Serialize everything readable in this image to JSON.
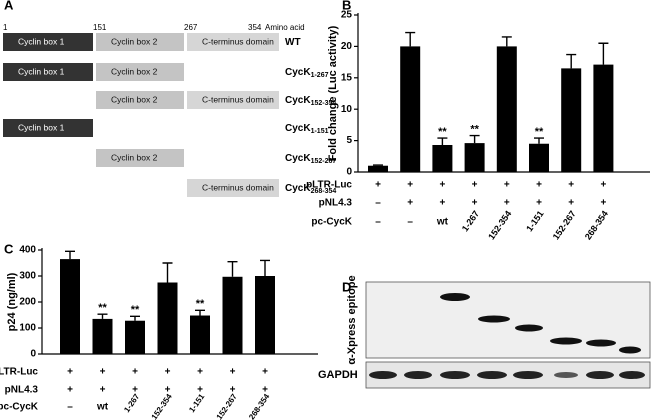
{
  "diagram": {
    "panel": "A",
    "scale": [
      1,
      151,
      267,
      354
    ],
    "scale_unit": "Amino acid",
    "rows": [
      {
        "name": "WT",
        "boxes": [
          {
            "label": "Cyclin box 1",
            "start": 1,
            "end": 151
          },
          {
            "label": "Cyclin box 2",
            "start": 151,
            "end": 267
          },
          {
            "label": "C-terminus domain",
            "start": 267,
            "end": 354
          }
        ]
      },
      {
        "name": "CycK",
        "subscript": "1-267",
        "boxes": [
          {
            "label": "Cyclin box 1",
            "start": 1,
            "end": 151
          },
          {
            "label": "Cyclin box 2",
            "start": 151,
            "end": 267
          }
        ]
      },
      {
        "name": "CycK",
        "subscript": "152-354",
        "boxes": [
          {
            "label": "Cyclin box 2",
            "start": 151,
            "end": 267
          },
          {
            "label": "C-terminus domain",
            "start": 267,
            "end": 354
          }
        ]
      },
      {
        "name": "CycK",
        "subscript": "1-151",
        "boxes": [
          {
            "label": "Cyclin box 1",
            "start": 1,
            "end": 151
          }
        ]
      },
      {
        "name": "CycK",
        "subscript": "152-267",
        "boxes": [
          {
            "label": "Cyclin box 2",
            "start": 151,
            "end": 267
          }
        ]
      },
      {
        "name": "CycK",
        "subscript": "268-354",
        "boxes": [
          {
            "label": "C-terminus domain",
            "start": 267,
            "end": 354
          }
        ]
      }
    ]
  },
  "chart_data": [
    {
      "type": "bar",
      "panel": "B",
      "ylabel": "Fold change (Luc activity)",
      "color": "#000000",
      "values": [
        1,
        20,
        4.3,
        4.6,
        20,
        4.5,
        16.5,
        17.1
      ],
      "errors": [
        0.1,
        2.2,
        1.1,
        1.2,
        1.5,
        0.9,
        2.2,
        3.4
      ],
      "significance": [
        null,
        null,
        "**",
        "**",
        null,
        "**",
        null,
        null
      ],
      "ylim": [
        0,
        25
      ],
      "yticks": [
        0,
        5,
        10,
        15,
        20,
        25
      ],
      "conditions": [
        {
          "name": "pLTR-Luc",
          "entries": [
            "+",
            "+",
            "+",
            "+",
            "+",
            "+",
            "+",
            "+"
          ]
        },
        {
          "name": "pNL4.3",
          "entries": [
            "–",
            "+",
            "+",
            "+",
            "+",
            "+",
            "+",
            "+"
          ]
        },
        {
          "name": "pc-CycK",
          "entries": [
            "–",
            "–",
            "wt",
            "1-267",
            "152-354",
            "1-151",
            "152-267",
            "268-354"
          ]
        }
      ]
    },
    {
      "type": "bar",
      "panel": "C",
      "ylabel": "p24 (ng/ml)",
      "color": "#000000",
      "values": [
        365,
        135,
        128,
        275,
        148,
        297,
        300
      ],
      "errors": [
        30,
        18,
        17,
        75,
        20,
        58,
        60
      ],
      "significance": [
        null,
        "**",
        "**",
        null,
        "**",
        null,
        null
      ],
      "ylim": [
        0,
        400
      ],
      "yticks": [
        0,
        100,
        200,
        300,
        400
      ],
      "conditions": [
        {
          "name": "pLTR-Luc",
          "entries": [
            "+",
            "+",
            "+",
            "+",
            "+",
            "+",
            "+"
          ]
        },
        {
          "name": "pNL4.3",
          "entries": [
            "+",
            "+",
            "+",
            "+",
            "+",
            "+",
            "+"
          ]
        },
        {
          "name": "pc-CycK",
          "entries": [
            "–",
            "wt",
            "1-267",
            "152-354",
            "1-151",
            "152-267",
            "268-354"
          ]
        }
      ]
    }
  ],
  "blot": {
    "panel": "D",
    "antibodies": [
      "α-Xpress epitope",
      "GAPDH"
    ]
  }
}
